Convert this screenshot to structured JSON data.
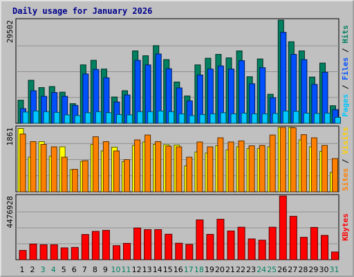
{
  "chart_data": {
    "type": "bar",
    "title": "Daily usage for January 2026",
    "categories": [
      "1",
      "2",
      "3",
      "4",
      "5",
      "6",
      "7",
      "8",
      "9",
      "10",
      "11",
      "12",
      "13",
      "14",
      "15",
      "16",
      "17",
      "18",
      "19",
      "20",
      "21",
      "22",
      "23",
      "24",
      "25",
      "26",
      "27",
      "28",
      "29",
      "30",
      "31"
    ],
    "weekend_days": [
      3,
      4,
      10,
      11,
      17,
      18,
      24,
      25,
      31
    ],
    "panels": [
      {
        "id": "hits",
        "max_label": "29502",
        "ylim": [
          0,
          29502
        ],
        "axis_label_parts": [
          {
            "text": "Pages",
            "color": "#00c8ff"
          },
          {
            "text": " / ",
            "color": "#000000"
          },
          {
            "text": "Files",
            "color": "#0050ff"
          },
          {
            "text": " / ",
            "color": "#000000"
          },
          {
            "text": "Hits",
            "color": "#008060"
          }
        ],
        "series": [
          {
            "name": "Hits",
            "color": "#008060",
            "values": [
              6600,
              12300,
              10200,
              10500,
              8900,
              5600,
              16700,
              18000,
              15500,
              7500,
              9300,
              20700,
              19300,
              22200,
              18200,
              11800,
              7800,
              16700,
              18600,
              19700,
              18700,
              20700,
              13300,
              18400,
              8300,
              29502,
              23300,
              20700,
              13200,
              17200,
              5000
            ]
          },
          {
            "name": "Files",
            "color": "#0050ff",
            "values": [
              4200,
              9300,
              7700,
              8800,
              7700,
              5100,
              14100,
              15400,
              13000,
              6100,
              8100,
              18000,
              16700,
              19800,
              15600,
              10100,
              6400,
              13800,
              15500,
              16400,
              15500,
              17900,
              11300,
              15900,
              7300,
              26000,
              19700,
              18200,
              11100,
              14600,
              3900
            ]
          },
          {
            "name": "Pages",
            "color": "#00c8ff",
            "values": [
              3200,
              3500,
              3300,
              3100,
              2400,
              2200,
              3000,
              3300,
              3000,
              2500,
              2400,
              3300,
              3300,
              3500,
              3300,
              2700,
              2200,
              2500,
              2700,
              3000,
              2700,
              2900,
              2700,
              2700,
              2800,
              3500,
              3400,
              2900,
              2800,
              2900,
              1700
            ]
          }
        ]
      },
      {
        "id": "visits",
        "max_label": "1861",
        "ylim": [
          0,
          1861
        ],
        "axis_label_parts": [
          {
            "text": "Sites",
            "color": "#ff8000"
          },
          {
            "text": " / ",
            "color": "#000000"
          },
          {
            "text": "Visits",
            "color": "#ffd000"
          }
        ],
        "series": [
          {
            "name": "Visits",
            "color": "#ffff00",
            "values": [
              1830,
              1000,
              1450,
              1030,
              1300,
              640,
              880,
              1370,
              1180,
              1290,
              870,
              1340,
              1440,
              1370,
              1360,
              1350,
              750,
              1150,
              1120,
              1330,
              1210,
              1300,
              1250,
              1250,
              1300,
              1861,
              1861,
              1500,
              1300,
              1170,
              560
            ]
          },
          {
            "name": "Sites",
            "color": "#ff8000",
            "values": [
              1670,
              1450,
              1370,
              1300,
              1000,
              650,
              900,
              1590,
              1450,
              1180,
              930,
              1500,
              1640,
              1450,
              1320,
              1300,
              1000,
              1440,
              1300,
              1560,
              1440,
              1470,
              1330,
              1340,
              1640,
              1861,
              1850,
              1650,
              1560,
              1340,
              960
            ]
          }
        ]
      },
      {
        "id": "kbytes",
        "max_label": "4476928",
        "ylim": [
          0,
          4476928
        ],
        "axis_label_parts": [
          {
            "text": "KBytes",
            "color": "#ff0000"
          }
        ],
        "series": [
          {
            "name": "KBytes",
            "color": "#ff0000",
            "values": [
              650000,
              1100000,
              1050000,
              1050000,
              830000,
              860000,
              1770000,
              1990000,
              2060000,
              990000,
              1150000,
              2230000,
              2110000,
              2110000,
              1790000,
              1160000,
              1070000,
              2800000,
              1780000,
              2840000,
              2020000,
              2280000,
              1460000,
              1370000,
              2280000,
              4476928,
              3050000,
              1570000,
              2270000,
              1710000,
              540000
            ]
          }
        ]
      }
    ]
  }
}
